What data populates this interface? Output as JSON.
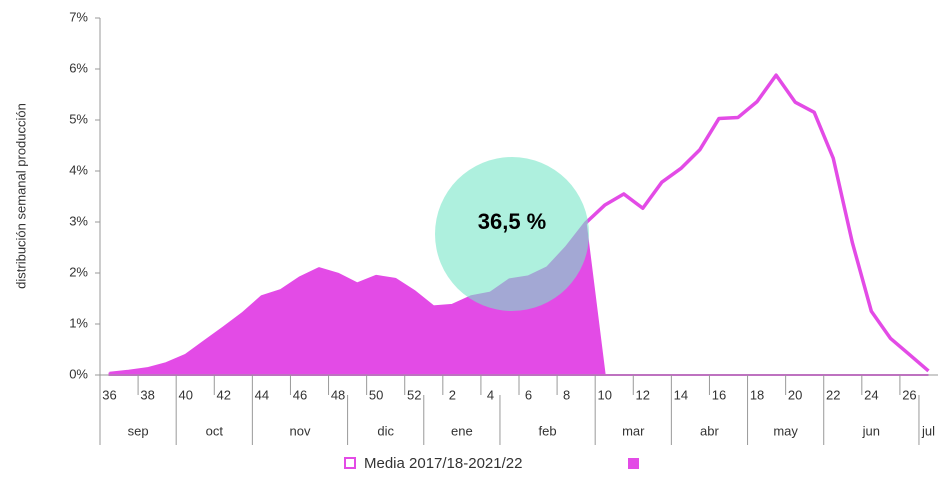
{
  "chart_data": {
    "type": "area-line",
    "y_label": "distribución semanal producción",
    "categories": [
      "36",
      null,
      "38",
      null,
      "40",
      null,
      "42",
      null,
      "44",
      null,
      "46",
      null,
      "48",
      null,
      "50",
      null,
      "52",
      null,
      "2",
      null,
      "4",
      null,
      "6",
      null,
      "8",
      null,
      "10",
      null,
      "12",
      null,
      "14",
      null,
      "16",
      null,
      "18",
      null,
      "20",
      null,
      "22",
      null,
      "24",
      null,
      "26",
      null
    ],
    "months": [
      "sep",
      "oct",
      "nov",
      "dic",
      "ene",
      "feb",
      "mar",
      "abr",
      "may",
      "jun",
      "jul"
    ],
    "series": [
      {
        "name": "Media 2017/18-2021/22",
        "color": "#e34be6",
        "values": [
          0.03,
          0.07,
          0.12,
          0.22,
          0.38,
          0.65,
          0.92,
          1.2,
          1.53,
          1.65,
          1.9,
          2.08,
          1.97,
          1.78,
          1.93,
          1.87,
          1.63,
          1.33,
          1.36,
          1.53,
          1.6,
          1.86,
          1.92,
          2.1,
          2.5,
          2.98,
          3.33,
          3.55,
          3.27,
          3.78,
          4.05,
          4.42,
          5.03,
          5.05,
          5.36,
          5.88,
          5.35,
          5.15,
          4.25,
          2.6,
          1.25,
          0.72,
          0.4,
          0.08
        ]
      },
      {
        "color": "#e34be6",
        "values": [
          0.03,
          0.07,
          0.12,
          0.22,
          0.38,
          0.65,
          0.92,
          1.2,
          1.53,
          1.65,
          1.9,
          2.08,
          1.97,
          1.78,
          1.93,
          1.87,
          1.63,
          1.33,
          1.36,
          1.53,
          1.6,
          1.86,
          1.92,
          2.1,
          2.5,
          2.98,
          0,
          0,
          0,
          0,
          0,
          0,
          0,
          0,
          0,
          0,
          0,
          0,
          0,
          0,
          0,
          0,
          0,
          0
        ]
      }
    ],
    "annotation": "36,5 %",
    "ylim": [
      0,
      7
    ],
    "yticks": [
      {
        "value": 0,
        "label": "0%"
      },
      {
        "value": 1,
        "label": "1%"
      },
      {
        "value": 2,
        "label": "2%"
      },
      {
        "value": 3,
        "label": "3%"
      },
      {
        "value": 4,
        "label": "4%"
      },
      {
        "value": 5,
        "label": "5%"
      },
      {
        "value": 6,
        "label": "6%"
      },
      {
        "value": 7,
        "label": "7%"
      }
    ]
  }
}
